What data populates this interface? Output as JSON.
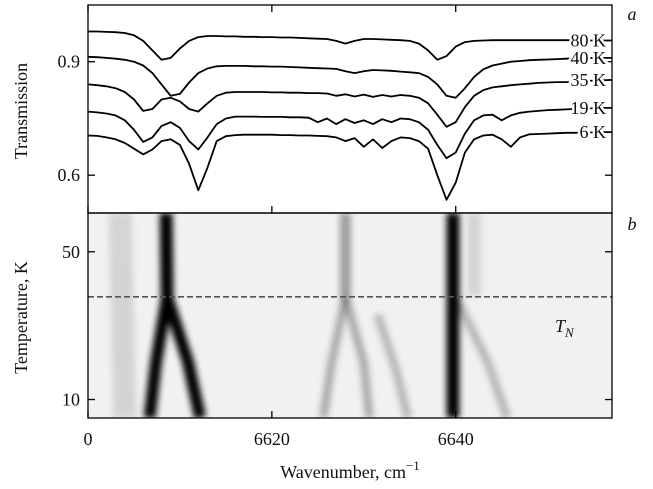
{
  "chart_data": [
    {
      "type": "line",
      "panel_label": "a",
      "y_label": "Transmission",
      "xlim": [
        6600,
        6657
      ],
      "ylim": [
        0.5,
        1.05
      ],
      "yticks": [
        0.6,
        0.9
      ],
      "x": [
        6600,
        6601,
        6602,
        6603,
        6604,
        6605,
        6606,
        6607,
        6608,
        6609,
        6610,
        6611,
        6612,
        6613,
        6614,
        6615,
        6616,
        6617,
        6618,
        6619,
        6620,
        6621,
        6622,
        6623,
        6624,
        6625,
        6626,
        6627,
        6628,
        6629,
        6630,
        6631,
        6632,
        6633,
        6634,
        6635,
        6636,
        6637,
        6638,
        6639,
        6640,
        6641,
        6642,
        6643,
        6644,
        6645,
        6646,
        6647,
        6648,
        6649,
        6650,
        6651,
        6652,
        6653,
        6654,
        6655,
        6656,
        6657
      ],
      "series": [
        {
          "name": "80 K",
          "color": "#000000",
          "values": [
            0.98,
            0.98,
            0.979,
            0.978,
            0.976,
            0.97,
            0.955,
            0.93,
            0.905,
            0.91,
            0.935,
            0.955,
            0.965,
            0.968,
            0.968,
            0.967,
            0.967,
            0.966,
            0.966,
            0.965,
            0.965,
            0.964,
            0.964,
            0.963,
            0.962,
            0.961,
            0.96,
            0.955,
            0.948,
            0.955,
            0.96,
            0.96,
            0.959,
            0.958,
            0.957,
            0.955,
            0.948,
            0.93,
            0.905,
            0.915,
            0.94,
            0.952,
            0.955,
            0.956,
            0.957,
            0.957,
            0.957,
            0.957,
            0.957,
            0.957,
            0.957,
            0.957,
            0.957,
            0.957,
            0.956,
            0.956,
            0.956,
            0.956
          ]
        },
        {
          "name": "40 K",
          "color": "#000000",
          "values": [
            0.913,
            0.912,
            0.91,
            0.908,
            0.905,
            0.9,
            0.89,
            0.87,
            0.84,
            0.81,
            0.815,
            0.845,
            0.87,
            0.882,
            0.888,
            0.889,
            0.889,
            0.889,
            0.888,
            0.888,
            0.887,
            0.887,
            0.886,
            0.885,
            0.884,
            0.883,
            0.882,
            0.881,
            0.875,
            0.87,
            0.875,
            0.878,
            0.877,
            0.876,
            0.874,
            0.872,
            0.87,
            0.86,
            0.84,
            0.81,
            0.805,
            0.83,
            0.86,
            0.88,
            0.89,
            0.895,
            0.9,
            0.902,
            0.904,
            0.905,
            0.906,
            0.907,
            0.908,
            0.909,
            0.909,
            0.91,
            0.91,
            0.91
          ]
        },
        {
          "name": "35 K",
          "color": "#000000",
          "values": [
            0.84,
            0.838,
            0.835,
            0.83,
            0.82,
            0.8,
            0.77,
            0.775,
            0.8,
            0.805,
            0.795,
            0.775,
            0.768,
            0.79,
            0.81,
            0.818,
            0.82,
            0.82,
            0.82,
            0.82,
            0.819,
            0.819,
            0.818,
            0.818,
            0.817,
            0.817,
            0.816,
            0.81,
            0.814,
            0.808,
            0.813,
            0.807,
            0.812,
            0.808,
            0.812,
            0.81,
            0.805,
            0.79,
            0.76,
            0.728,
            0.74,
            0.78,
            0.81,
            0.825,
            0.832,
            0.835,
            0.838,
            0.84,
            0.842,
            0.844,
            0.845,
            0.846,
            0.846,
            0.848,
            0.849,
            0.85,
            0.851,
            0.852
          ]
        },
        {
          "name": "19 K",
          "color": "#000000",
          "values": [
            0.768,
            0.766,
            0.763,
            0.758,
            0.745,
            0.72,
            0.688,
            0.7,
            0.73,
            0.74,
            0.725,
            0.69,
            0.668,
            0.7,
            0.735,
            0.75,
            0.755,
            0.755,
            0.755,
            0.754,
            0.754,
            0.754,
            0.753,
            0.753,
            0.752,
            0.74,
            0.75,
            0.735,
            0.748,
            0.738,
            0.745,
            0.735,
            0.748,
            0.74,
            0.75,
            0.748,
            0.74,
            0.72,
            0.68,
            0.645,
            0.66,
            0.71,
            0.745,
            0.758,
            0.76,
            0.745,
            0.758,
            0.765,
            0.768,
            0.77,
            0.772,
            0.773,
            0.774,
            0.775,
            0.776,
            0.777,
            0.778,
            0.778
          ]
        },
        {
          "name": "6 K",
          "color": "#000000",
          "values": [
            0.705,
            0.704,
            0.7,
            0.695,
            0.685,
            0.67,
            0.655,
            0.668,
            0.69,
            0.695,
            0.68,
            0.63,
            0.56,
            0.62,
            0.69,
            0.703,
            0.706,
            0.707,
            0.707,
            0.707,
            0.707,
            0.706,
            0.706,
            0.705,
            0.705,
            0.704,
            0.703,
            0.7,
            0.69,
            0.698,
            0.675,
            0.695,
            0.672,
            0.69,
            0.7,
            0.698,
            0.69,
            0.67,
            0.6,
            0.535,
            0.58,
            0.66,
            0.695,
            0.705,
            0.707,
            0.695,
            0.675,
            0.7,
            0.708,
            0.709,
            0.71,
            0.711,
            0.712,
            0.712,
            0.713,
            0.713,
            0.714,
            0.714
          ]
        }
      ]
    },
    {
      "type": "bands",
      "panel_label": "b",
      "y_label": "Temperature, K",
      "x_label": "Wavenumber, cm",
      "x_label_sup": "−1",
      "xlim": [
        6600,
        6657
      ],
      "xticks": [
        {
          "value": 6600,
          "label": "0"
        },
        6620,
        6640
      ],
      "ylim": [
        5,
        60.5
      ],
      "yticks": [
        10,
        50
      ],
      "background": "#f1f1f1",
      "threshold": {
        "value": 37.8,
        "label": "T",
        "subscript": "N"
      },
      "bands": [
        {
          "x": [
            6603.5,
            6604
          ],
          "T": [
            60.5,
            5
          ],
          "darkness": 0.12,
          "width": 2.5
        },
        {
          "x": [
            6642,
            6642
          ],
          "T": [
            60.5,
            38
          ],
          "darkness": 0.12,
          "width": 1.5
        },
        {
          "x": [
            6628,
            6628
          ],
          "T": [
            60.5,
            37.8
          ],
          "darkness": 0.35,
          "width": 1.2
        },
        {
          "x": [
            6628,
            6626.5,
            6625.6
          ],
          "T": [
            37.8,
            20,
            5
          ],
          "darkness": 0.3,
          "width": 0.9
        },
        {
          "x": [
            6628,
            6630,
            6630.6
          ],
          "T": [
            37.8,
            20,
            5
          ],
          "darkness": 0.3,
          "width": 0.9
        },
        {
          "x": [
            6631.5,
            6633.5,
            6634.8
          ],
          "T": [
            33,
            18,
            5
          ],
          "darkness": 0.25,
          "width": 0.9
        },
        {
          "x": [
            6640,
            6643.5,
            6645.6
          ],
          "T": [
            37.8,
            20,
            5
          ],
          "darkness": 0.25,
          "width": 0.9
        },
        {
          "x": [
            6608.5,
            6608.6
          ],
          "T": [
            60.5,
            37.8
          ],
          "darkness": 1,
          "width": 1.4
        },
        {
          "x": [
            6608.6,
            6607.4,
            6606.7
          ],
          "T": [
            37.8,
            20,
            5
          ],
          "darkness": 1,
          "width": 1.3
        },
        {
          "x": [
            6608.6,
            6610.9,
            6612.2
          ],
          "T": [
            37.8,
            20,
            5
          ],
          "darkness": 1,
          "width": 1.3
        },
        {
          "x": [
            6639.7,
            6639.7
          ],
          "T": [
            60.5,
            5
          ],
          "darkness": 1,
          "width": 1.4
        }
      ]
    }
  ]
}
